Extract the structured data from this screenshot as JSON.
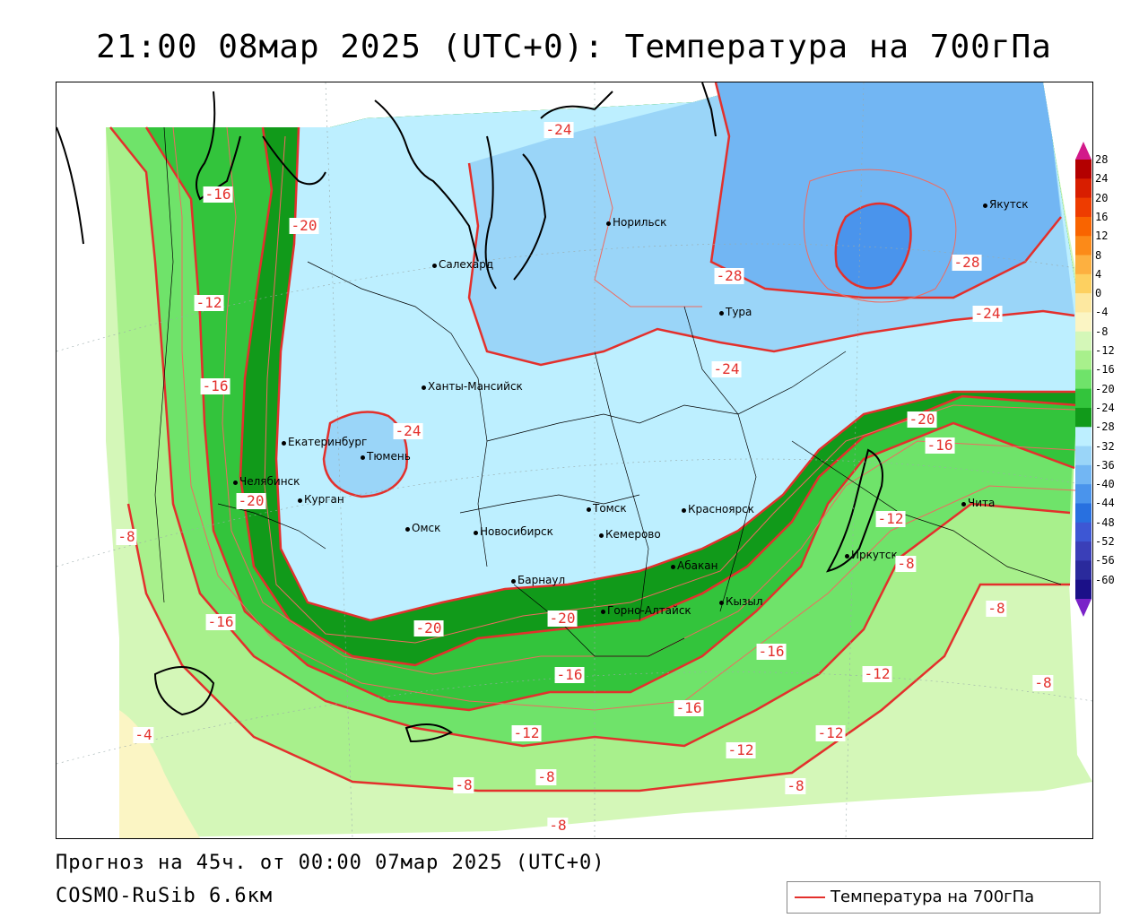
{
  "title": "21:00 08мар 2025 (UTC+0): Температура на 700гПа",
  "footer": {
    "forecast": "Прогноз на 45ч. от 00:00 07мар 2025 (UTC+0)",
    "model": "COSMO-RuSib 6.6км"
  },
  "legend": {
    "label": "Температура на 700гПа",
    "line_color": "#e3302c"
  },
  "colorbar": {
    "ticks": [
      "28",
      "24",
      "20",
      "16",
      "12",
      "8",
      "4",
      "0",
      "-4",
      "-8",
      "-12",
      "-16",
      "-20",
      "-24",
      "-28",
      "-32",
      "-36",
      "-40",
      "-44",
      "-48",
      "-52",
      "-56",
      "-60"
    ],
    "colors": [
      "#d21a8a",
      "#b30000",
      "#d81e00",
      "#ee3c00",
      "#f96400",
      "#fc8a18",
      "#fdb040",
      "#fdd060",
      "#fde8a0",
      "#fbf5c4",
      "#d4f7b8",
      "#a8f08c",
      "#6fe36a",
      "#33c43c",
      "#119a1a",
      "#bdefff",
      "#9ad5f8",
      "#72b6f3",
      "#4a94ec",
      "#2870e0",
      "#3d57d4",
      "#3a3fb8",
      "#2a2a9c",
      "#1b1088",
      "#7a22c8"
    ]
  },
  "cities": [
    {
      "name": "Норильск"
    },
    {
      "name": "Якутск"
    },
    {
      "name": "Салехард"
    },
    {
      "name": "Тура"
    },
    {
      "name": "Ханты-Мансийск"
    },
    {
      "name": "Екатеринбург"
    },
    {
      "name": "Тюмень"
    },
    {
      "name": "Челябинск"
    },
    {
      "name": "Курган"
    },
    {
      "name": "Омск"
    },
    {
      "name": "Новосибирск"
    },
    {
      "name": "Томск"
    },
    {
      "name": "Кемерово"
    },
    {
      "name": "Красноярск"
    },
    {
      "name": "Абакан"
    },
    {
      "name": "Барнаул"
    },
    {
      "name": "Горно-Алтайск"
    },
    {
      "name": "Кызыл"
    },
    {
      "name": "Иркутск"
    },
    {
      "name": "Чита"
    }
  ],
  "isolines": [
    "-24",
    "-16",
    "-20",
    "-12",
    "-16",
    "-28",
    "-28",
    "-24",
    "-24",
    "-24",
    "-20",
    "-16",
    "-12",
    "-20",
    "-8",
    "-16",
    "-20",
    "-20",
    "-16",
    "-16",
    "-12",
    "-8",
    "-8",
    "-16",
    "-12",
    "-12",
    "-12",
    "-8",
    "-4",
    "-8",
    "-8",
    "-8",
    "-8"
  ]
}
